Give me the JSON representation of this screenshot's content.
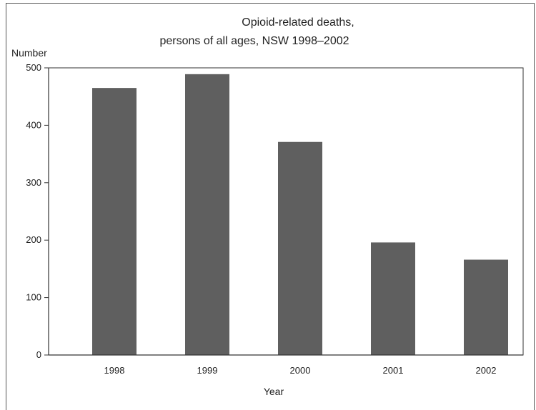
{
  "chart_data": {
    "type": "bar",
    "title_line1": "Opioid-related deaths,",
    "title_line2": "persons of all ages, NSW 1998–2002",
    "xlabel": "Year",
    "ylabel": "Number",
    "categories": [
      "1998",
      "1999",
      "2000",
      "2001",
      "2002"
    ],
    "values": [
      465,
      489,
      371,
      196,
      166
    ],
    "ylim": [
      0,
      500
    ],
    "yticks": [
      "0",
      "100",
      "200",
      "300",
      "400",
      "500"
    ],
    "grid": false,
    "bar_color": "#5f5f5f",
    "axis_color": "#333333"
  }
}
